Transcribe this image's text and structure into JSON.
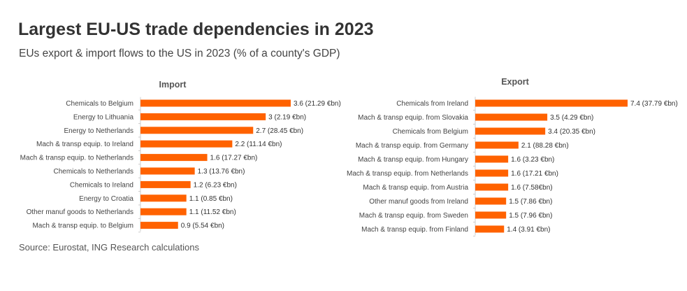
{
  "title": "Largest EU-US trade dependencies in 2023",
  "subtitle": "EUs export & import flows to the US in 2023 (% of a county's GDP)",
  "source": "Source: Eurostat, ING Research calculations",
  "colors": {
    "bar": "#ff6200",
    "axis": "#cccccc"
  },
  "chart_data": [
    {
      "type": "bar",
      "orientation": "horizontal",
      "title": "Import",
      "xlabel": "",
      "ylabel": "",
      "xlim": [
        0,
        3.6
      ],
      "categories": [
        "Chemicals to Belgium",
        "Energy to Lithuania",
        "Energy to Netherlands",
        "Mach & transp equip. to Ireland",
        "Mach & transp equip. to Netherlands",
        "Chemicals to Netherlands",
        "Chemicals to Ireland",
        "Energy to Croatia",
        "Other manuf goods to Netherlands",
        "Mach & transp equip. to Belgium"
      ],
      "values": [
        3.6,
        3,
        2.7,
        2.2,
        1.6,
        1.3,
        1.2,
        1.1,
        1.1,
        0.9
      ],
      "labels": [
        "3.6 (21.29 €bn)",
        "3 (2.19 €bn)",
        "2.7 (28.45 €bn)",
        "2.2 (11.14 €bn)",
        "1.6 (17.27 €bn)",
        "1.3 (13.76 €bn)",
        "1.2 (6.23 €bn)",
        "1.1 (0.85 €bn)",
        "1.1 (11.52 €bn)",
        "0.9 (5.54 €bn)"
      ]
    },
    {
      "type": "bar",
      "orientation": "horizontal",
      "title": "Export",
      "xlabel": "",
      "ylabel": "",
      "xlim": [
        0,
        7.4
      ],
      "categories": [
        "Chemicals from Ireland",
        "Mach & transp equip. from Slovakia",
        "Chemicals from Belgium",
        "Mach & transp equip. from Germany",
        "Mach & transp equip. from Hungary",
        "Mach & transp equip. from Netherlands",
        "Mach & transp equip. from Austria",
        "Other manuf goods from Ireland",
        "Mach & transp equip. from Sweden",
        "Mach & transp equip. from Finland"
      ],
      "values": [
        7.4,
        3.5,
        3.4,
        2.1,
        1.6,
        1.6,
        1.6,
        1.5,
        1.5,
        1.4
      ],
      "labels": [
        "7.4 (37.79 €bn)",
        "3.5 (4.29 €bn)",
        "3.4 (20.35 €bn)",
        "2.1 (88.28 €bn)",
        "1.6 (3.23 €bn)",
        "1.6 (17.21 €bn)",
        "1.6 (7.58€bn)",
        "1.5 (7.86 €bn)",
        "1.5 (7.96 €bn)",
        "1.4 (3.91 €bn)"
      ]
    }
  ]
}
